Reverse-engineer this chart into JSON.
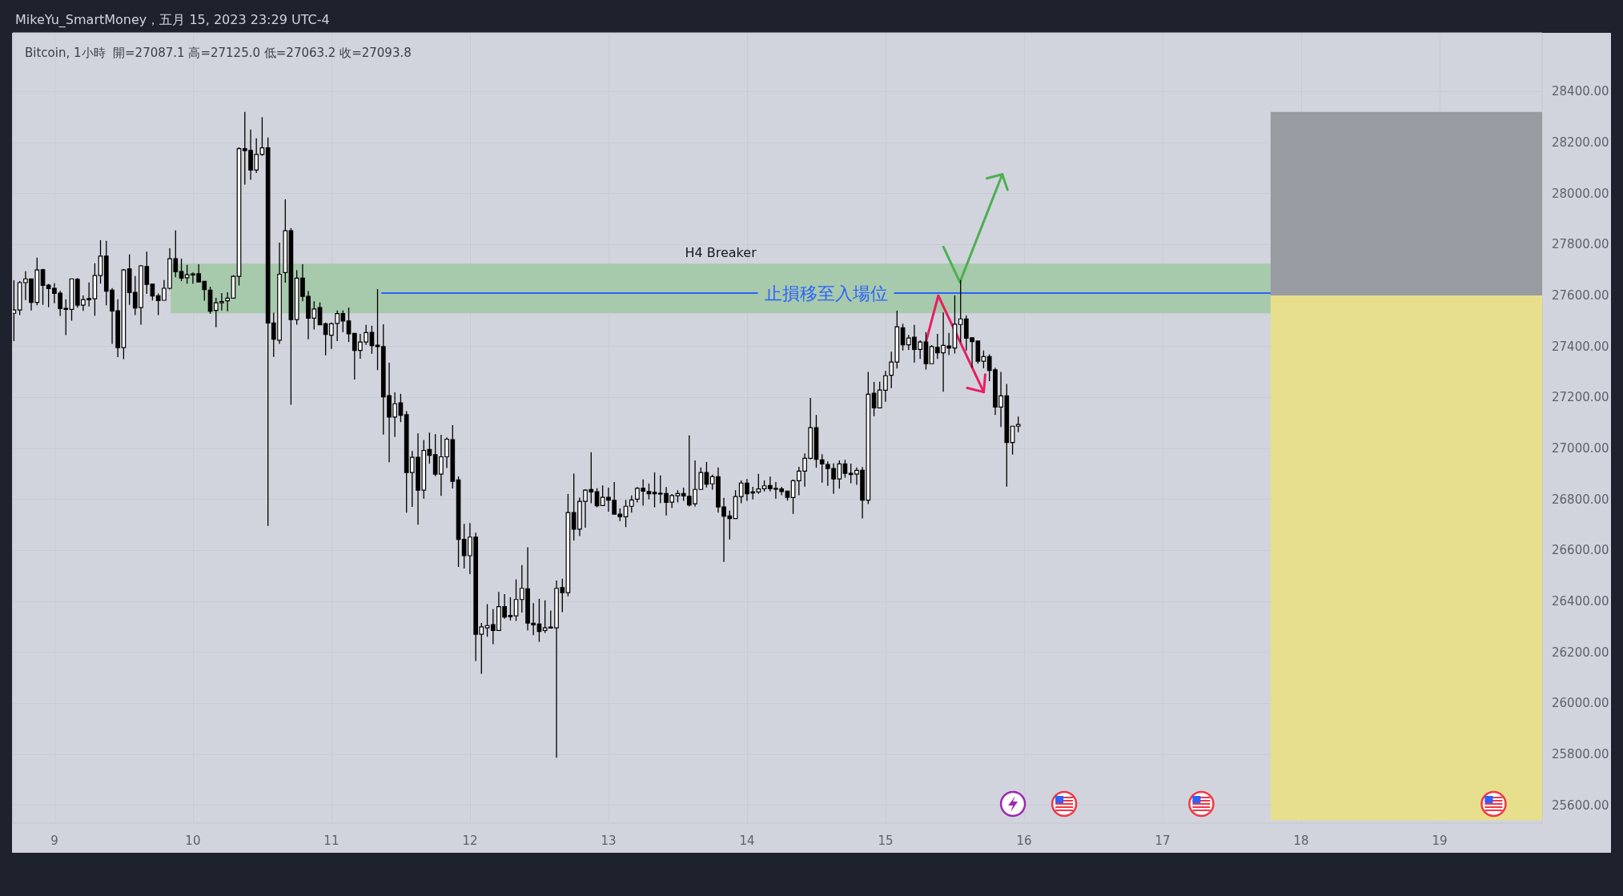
{
  "chart_data": {
    "type": "candlestick",
    "title": "MikeYu_SmartMoney，五月 15, 2023 23:29 UTC-4",
    "subtitle": "Bitcoin, 1小時  開=27087.1 高=27125.0 低=27063.2 收=27093.8",
    "x": [
      8.708,
      8.75,
      8.792,
      8.833,
      8.875,
      8.917,
      8.958,
      9,
      9.042,
      9.083,
      9.125,
      9.167,
      9.208,
      9.25,
      9.292,
      9.333,
      9.375,
      9.417,
      9.458,
      9.5,
      9.542,
      9.583,
      9.625,
      9.667,
      9.708,
      9.75,
      9.792,
      9.833,
      9.875,
      9.917,
      9.958,
      10,
      10.042,
      10.083,
      10.125,
      10.167,
      10.208,
      10.25,
      10.292,
      10.333,
      10.375,
      10.417,
      10.458,
      10.5,
      10.542,
      10.583,
      10.625,
      10.667,
      10.708,
      10.75,
      10.792,
      10.833,
      10.875,
      10.917,
      10.958,
      11,
      11.042,
      11.083,
      11.125,
      11.167,
      11.208,
      11.25,
      11.292,
      11.333,
      11.375,
      11.417,
      11.458,
      11.5,
      11.542,
      11.583,
      11.625,
      11.667,
      11.708,
      11.75,
      11.792,
      11.833,
      11.875,
      11.917,
      11.958,
      12,
      12.042,
      12.083,
      12.125,
      12.167,
      12.208,
      12.25,
      12.292,
      12.333,
      12.375,
      12.417,
      12.458,
      12.5,
      12.542,
      12.583,
      12.625,
      12.667,
      12.708,
      12.75,
      12.792,
      12.833,
      12.875,
      12.917,
      12.958,
      13,
      13.042,
      13.083,
      13.125,
      13.167,
      13.208,
      13.25,
      13.292,
      13.333,
      13.375,
      13.417,
      13.458,
      13.5,
      13.542,
      13.583,
      13.625,
      13.667,
      13.708,
      13.75,
      13.792,
      13.833,
      13.875,
      13.917,
      13.958,
      14,
      14.042,
      14.083,
      14.125,
      14.167,
      14.208,
      14.25,
      14.292,
      14.333,
      14.375,
      14.417,
      14.458,
      14.5,
      14.542,
      14.583,
      14.625,
      14.667,
      14.708,
      14.75,
      14.792,
      14.833,
      14.875,
      14.917,
      14.958,
      15,
      15.042,
      15.083,
      15.125,
      15.167,
      15.208,
      15.25,
      15.292,
      15.333,
      15.375,
      15.417,
      15.458,
      15.5,
      15.542,
      15.583,
      15.625,
      15.667,
      15.708,
      15.75,
      15.792,
      15.833,
      15.875,
      15.917,
      15.958
    ],
    "ohlc": [
      [
        27530,
        27660,
        27421,
        27543
      ],
      [
        27543,
        27656,
        27523,
        27650
      ],
      [
        27650,
        27695,
        27582,
        27665
      ],
      [
        27665,
        27665,
        27541,
        27573
      ],
      [
        27573,
        27748,
        27561,
        27700
      ],
      [
        27701,
        27704,
        27563,
        27639
      ],
      [
        27640,
        27645,
        27554,
        27627
      ],
      [
        27628,
        27648,
        27569,
        27608
      ],
      [
        27609,
        27618,
        27520,
        27548
      ],
      [
        27549,
        27585,
        27444,
        27545
      ],
      [
        27545,
        27665,
        27501,
        27665
      ],
      [
        27663,
        27668,
        27552,
        27562
      ],
      [
        27562,
        27600,
        27539,
        27584
      ],
      [
        27588,
        27651,
        27557,
        27583
      ],
      [
        27587,
        27726,
        27520,
        27678
      ],
      [
        27678,
        27817,
        27646,
        27754
      ],
      [
        27754,
        27814,
        27561,
        27617
      ],
      [
        27621,
        27629,
        27410,
        27539
      ],
      [
        27540,
        27585,
        27358,
        27395
      ],
      [
        27395,
        27703,
        27350,
        27700
      ],
      [
        27704,
        27761,
        27563,
        27611
      ],
      [
        27612,
        27676,
        27523,
        27551
      ],
      [
        27552,
        27719,
        27485,
        27716
      ],
      [
        27713,
        27772,
        27606,
        27643
      ],
      [
        27644,
        27644,
        27580,
        27598
      ],
      [
        27599,
        27608,
        27523,
        27580
      ],
      [
        27581,
        27660,
        27581,
        27628
      ],
      [
        27628,
        27785,
        27623,
        27744
      ],
      [
        27744,
        27855,
        27671,
        27693
      ],
      [
        27694,
        27744,
        27656,
        27668
      ],
      [
        27669,
        27720,
        27646,
        27681
      ],
      [
        27684,
        27690,
        27646,
        27680
      ],
      [
        27685,
        27722,
        27653,
        27653
      ],
      [
        27655,
        27655,
        27579,
        27623
      ],
      [
        27621,
        27634,
        27528,
        27538
      ],
      [
        27541,
        27590,
        27475,
        27571
      ],
      [
        27571,
        27609,
        27541,
        27576
      ],
      [
        27579,
        27612,
        27538,
        27589
      ],
      [
        27589,
        27679,
        27589,
        27675
      ],
      [
        27675,
        28181,
        27639,
        28176
      ],
      [
        28176,
        28320,
        28035,
        28168
      ],
      [
        28169,
        28251,
        28054,
        28092
      ],
      [
        28092,
        28216,
        28080,
        28153
      ],
      [
        28153,
        28299,
        28148,
        28179
      ],
      [
        28179,
        28219,
        26696,
        27492
      ],
      [
        27492,
        27532,
        27359,
        27428
      ],
      [
        27424,
        27807,
        27410,
        27683
      ],
      [
        27690,
        27977,
        27650,
        27854
      ],
      [
        27854,
        27864,
        27171,
        27505
      ],
      [
        27505,
        27699,
        27485,
        27668
      ],
      [
        27668,
        27722,
        27577,
        27596
      ],
      [
        27596,
        27617,
        27428,
        27511
      ],
      [
        27511,
        27577,
        27466,
        27547
      ],
      [
        27552,
        27573,
        27485,
        27485
      ],
      [
        27489,
        27494,
        27365,
        27447
      ],
      [
        27444,
        27494,
        27390,
        27489
      ],
      [
        27490,
        27541,
        27421,
        27529
      ],
      [
        27529,
        27541,
        27456,
        27500
      ],
      [
        27500,
        27552,
        27417,
        27449
      ],
      [
        27451,
        27451,
        27270,
        27384
      ],
      [
        27384,
        27449,
        27352,
        27417
      ],
      [
        27417,
        27484,
        27406,
        27454
      ],
      [
        27455,
        27481,
        27371,
        27403
      ],
      [
        27405,
        27625,
        27307,
        27399
      ],
      [
        27399,
        27487,
        27054,
        27202
      ],
      [
        27207,
        27336,
        26946,
        27123
      ],
      [
        27123,
        27220,
        27045,
        27175
      ],
      [
        27179,
        27214,
        27103,
        27130
      ],
      [
        27132,
        27146,
        26748,
        26905
      ],
      [
        26905,
        26990,
        26771,
        26965
      ],
      [
        26965,
        27059,
        26701,
        26836
      ],
      [
        26836,
        27033,
        26803,
        26992
      ],
      [
        26996,
        27062,
        26940,
        26973
      ],
      [
        26975,
        27056,
        26891,
        26899
      ],
      [
        26899,
        27053,
        26814,
        26967
      ],
      [
        26967,
        27043,
        26923,
        27036
      ],
      [
        27034,
        27091,
        26843,
        26871
      ],
      [
        26876,
        26890,
        26535,
        26643
      ],
      [
        26643,
        26704,
        26529,
        26579
      ],
      [
        26579,
        26707,
        26507,
        26652
      ],
      [
        26652,
        26669,
        26166,
        26271
      ],
      [
        26271,
        26315,
        26116,
        26300
      ],
      [
        26296,
        26389,
        26261,
        26305
      ],
      [
        26309,
        26369,
        26232,
        26286
      ],
      [
        26286,
        26437,
        26286,
        26379
      ],
      [
        26379,
        26428,
        26332,
        26338
      ],
      [
        26345,
        26416,
        26325,
        26340
      ],
      [
        26343,
        26486,
        26323,
        26407
      ],
      [
        26407,
        26542,
        26356,
        26451
      ],
      [
        26449,
        26612,
        26286,
        26315
      ],
      [
        26314,
        26393,
        26267,
        26308
      ],
      [
        26311,
        26410,
        26241,
        26282
      ],
      [
        26286,
        26404,
        26276,
        26296
      ],
      [
        26299,
        26364,
        26295,
        26295
      ],
      [
        26296,
        26482,
        25787,
        26451
      ],
      [
        26454,
        26489,
        26358,
        26434
      ],
      [
        26434,
        26821,
        26420,
        26748
      ],
      [
        26748,
        26901,
        26639,
        26683
      ],
      [
        26683,
        26807,
        26656,
        26792
      ],
      [
        26792,
        26840,
        26689,
        26836
      ],
      [
        26839,
        26985,
        26785,
        26829
      ],
      [
        26830,
        26844,
        26769,
        26775
      ],
      [
        26776,
        26855,
        26776,
        26808
      ],
      [
        26808,
        26846,
        26752,
        26797
      ],
      [
        26796,
        26868,
        26742,
        26742
      ],
      [
        26742,
        26764,
        26715,
        26732
      ],
      [
        26732,
        26798,
        26691,
        26773
      ],
      [
        26773,
        26815,
        26748,
        26798
      ],
      [
        26801,
        26848,
        26788,
        26843
      ],
      [
        26843,
        26878,
        26775,
        26832
      ],
      [
        26831,
        26862,
        26800,
        26822
      ],
      [
        26828,
        26906,
        26769,
        26822
      ],
      [
        26824,
        26894,
        26785,
        26822
      ],
      [
        26823,
        26848,
        26737,
        26788
      ],
      [
        26789,
        26821,
        26766,
        26815
      ],
      [
        26814,
        26836,
        26788,
        26823
      ],
      [
        26823,
        26846,
        26794,
        26813
      ],
      [
        26812,
        27051,
        26772,
        26778
      ],
      [
        26783,
        26953,
        26772,
        26839
      ],
      [
        26839,
        26925,
        26839,
        26905
      ],
      [
        26905,
        26947,
        26847,
        26860
      ],
      [
        26861,
        26897,
        26838,
        26889
      ],
      [
        26889,
        26925,
        26748,
        26770
      ],
      [
        26770,
        26806,
        26555,
        26734
      ],
      [
        26735,
        26756,
        26643,
        26725
      ],
      [
        26725,
        26836,
        26725,
        26811
      ],
      [
        26811,
        26874,
        26785,
        26864
      ],
      [
        26864,
        26880,
        26794,
        26822
      ],
      [
        26829,
        26849,
        26800,
        26825
      ],
      [
        26829,
        26900,
        26822,
        26841
      ],
      [
        26842,
        26874,
        26831,
        26853
      ],
      [
        26854,
        26889,
        26831,
        26842
      ],
      [
        26843,
        26868,
        26803,
        26841
      ],
      [
        26841,
        26849,
        26816,
        26831
      ],
      [
        26832,
        26832,
        26795,
        26808
      ],
      [
        26807,
        26878,
        26743,
        26873
      ],
      [
        26873,
        26928,
        26816,
        26911
      ],
      [
        26911,
        26980,
        26850,
        26961
      ],
      [
        26961,
        27198,
        26957,
        27081
      ],
      [
        27081,
        27131,
        26924,
        26957
      ],
      [
        26955,
        26977,
        26866,
        26939
      ],
      [
        26937,
        26949,
        26853,
        26921
      ],
      [
        26921,
        26941,
        26822,
        26880
      ],
      [
        26880,
        26953,
        26842,
        26939
      ],
      [
        26939,
        26955,
        26885,
        26902
      ],
      [
        26902,
        26940,
        26863,
        26897
      ],
      [
        26899,
        26925,
        26857,
        26914
      ],
      [
        26914,
        26927,
        26725,
        26797
      ],
      [
        26797,
        27300,
        26782,
        27212
      ],
      [
        27216,
        27261,
        27126,
        27159
      ],
      [
        27159,
        27261,
        27159,
        27229
      ],
      [
        27228,
        27304,
        27183,
        27285
      ],
      [
        27287,
        27379,
        27236,
        27339
      ],
      [
        27339,
        27540,
        27313,
        27477
      ],
      [
        27473,
        27489,
        27384,
        27406
      ],
      [
        27406,
        27445,
        27386,
        27433
      ],
      [
        27436,
        27484,
        27337,
        27388
      ],
      [
        27388,
        27424,
        27351,
        27417
      ],
      [
        27417,
        27456,
        27309,
        27332
      ],
      [
        27332,
        27405,
        27332,
        27399
      ],
      [
        27396,
        27449,
        27351,
        27375
      ],
      [
        27375,
        27533,
        27222,
        27404
      ],
      [
        27402,
        27453,
        27366,
        27394
      ],
      [
        27394,
        27600,
        27372,
        27487
      ],
      [
        27486,
        27660,
        27416,
        27508
      ],
      [
        27508,
        27521,
        27384,
        27432
      ],
      [
        27434,
        27434,
        27316,
        27419
      ],
      [
        27421,
        27421,
        27332,
        27342
      ],
      [
        27342,
        27384,
        27314,
        27360
      ],
      [
        27360,
        27369,
        27264,
        27306
      ],
      [
        27308,
        27316,
        27131,
        27162
      ],
      [
        27162,
        27300,
        27084,
        27206
      ],
      [
        27206,
        27253,
        26850,
        27023
      ],
      [
        27023,
        27087,
        26976,
        27087
      ],
      [
        27087.1,
        27125.0,
        27063.2,
        27093.8
      ]
    ],
    "xlim": [
      8.7,
      19.74
    ],
    "xticks": [
      9,
      10,
      11,
      12,
      13,
      14,
      15,
      16,
      17,
      18,
      19
    ],
    "ylim": [
      25530,
      28630
    ],
    "yticks": [
      {
        "value": 25600,
        "label": "25600.00"
      },
      {
        "value": 25800,
        "label": "25800.00"
      },
      {
        "value": 26000,
        "label": "26000.00"
      },
      {
        "value": 26200,
        "label": "26200.00"
      },
      {
        "value": 26400,
        "label": "26400.00"
      },
      {
        "value": 26600,
        "label": "26600.00"
      },
      {
        "value": 26800,
        "label": "26800.00"
      },
      {
        "value": 27000,
        "label": "27000.00"
      },
      {
        "value": 27200,
        "label": "27200.00"
      },
      {
        "value": 27400,
        "label": "27400.00"
      },
      {
        "value": 27600,
        "label": "27600.00"
      },
      {
        "value": 27800,
        "label": "27800.00"
      },
      {
        "value": 28000,
        "label": "28000.00"
      },
      {
        "value": 28200,
        "label": "28200.00"
      },
      {
        "value": 28400,
        "label": "28400.00"
      }
    ],
    "grid": true,
    "bands": [
      {
        "axis": "y",
        "from": 27530,
        "to": 27725,
        "label": "H4 Breaker",
        "color": "#a7c9ac"
      },
      {
        "axis": "y",
        "from": 27600,
        "to": 28320,
        "color": "#999ba3"
      },
      {
        "axis": "y",
        "from": 25542,
        "to": 27600,
        "color": "#e7df8c"
      }
    ],
    "ref_lines": [
      {
        "axis": "y",
        "value": 27610,
        "label": "止損移至入場位",
        "color": "#2962ff"
      }
    ]
  }
}
